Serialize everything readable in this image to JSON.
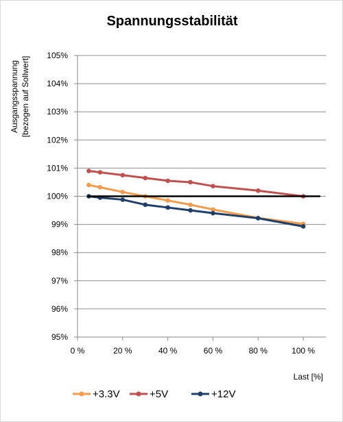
{
  "chart_data": {
    "type": "line",
    "title": "Spannungsstabilität",
    "ylabel_line1": "Ausgangsspannung",
    "ylabel_line2": "[bezogen auf Sollwert]",
    "xlabel": "Last [%]",
    "xlim": [
      0,
      110
    ],
    "ylim": [
      95,
      105
    ],
    "x_ticks": [
      0,
      20,
      40,
      60,
      80,
      100
    ],
    "x_tick_labels": [
      "0 %",
      "20 %",
      "40 %",
      "60 %",
      "80 %",
      "100 %"
    ],
    "y_ticks": [
      95,
      96,
      97,
      98,
      99,
      100,
      101,
      102,
      103,
      104,
      105
    ],
    "y_tick_labels": [
      "95%",
      "96%",
      "97%",
      "98%",
      "99%",
      "100%",
      "101%",
      "102%",
      "103%",
      "104%",
      "105%"
    ],
    "grid": "horizontal",
    "legend_position": "bottom",
    "reference_line": {
      "y": 100,
      "color": "#000000"
    },
    "series": [
      {
        "name": "+3.3V",
        "color": "#f59b4c",
        "x": [
          5,
          10,
          20,
          30,
          40,
          50,
          60,
          80,
          100
        ],
        "y": [
          100.4,
          100.32,
          100.15,
          100.0,
          99.85,
          99.7,
          99.53,
          99.23,
          99.02
        ]
      },
      {
        "name": "+5V",
        "color": "#c0504d",
        "x": [
          5,
          10,
          20,
          30,
          40,
          50,
          60,
          80,
          100
        ],
        "y": [
          100.9,
          100.85,
          100.75,
          100.65,
          100.55,
          100.5,
          100.36,
          100.2,
          100.0
        ]
      },
      {
        "name": "+12V",
        "color": "#1f3f6b",
        "x": [
          5,
          10,
          20,
          30,
          40,
          50,
          60,
          80,
          100
        ],
        "y": [
          100.0,
          99.95,
          99.88,
          99.7,
          99.6,
          99.5,
          99.4,
          99.22,
          98.93
        ]
      }
    ]
  }
}
